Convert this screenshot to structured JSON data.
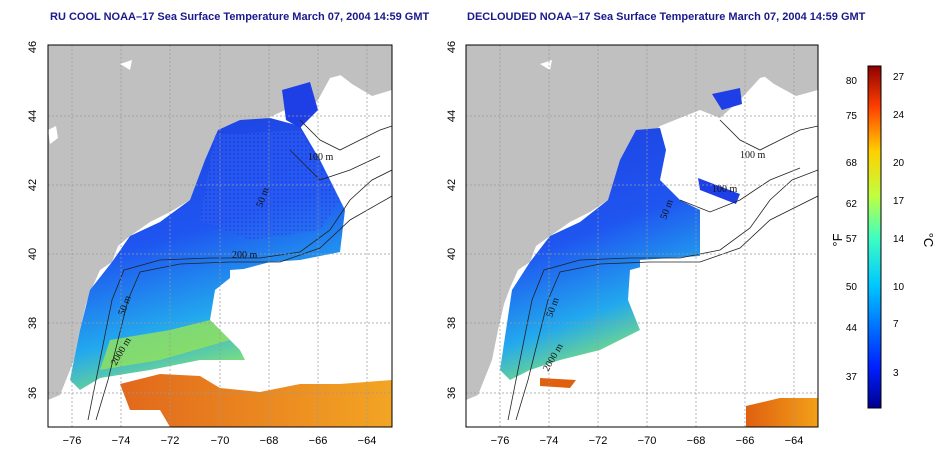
{
  "panels": [
    {
      "title": "RU COOL NOAA–17 Sea Surface Temperature March 07, 2004 14:59 GMT",
      "contour_labels": [
        "100 m",
        "50 m",
        "200 m",
        "50 m",
        "2000 m"
      ]
    },
    {
      "title": "DECLOUDED NOAA–17 Sea Surface Temperature March 07, 2004 14:59 GMT",
      "contour_labels": [
        "100 m",
        "100 m",
        "50 m",
        "50 m",
        "2000 m"
      ]
    }
  ],
  "axes": {
    "lon_ticks": [
      "−76",
      "−74",
      "−72",
      "−70",
      "−68",
      "−66",
      "−64"
    ],
    "lat_ticks": [
      "46",
      "44",
      "42",
      "40",
      "38",
      "36"
    ]
  },
  "colorbar": {
    "fahrenheit_label": "°F",
    "celsius_label": "°C",
    "fahrenheit_ticks": [
      "80",
      "75",
      "68",
      "62",
      "57",
      "50",
      "44",
      "37"
    ],
    "celsius_ticks": [
      "27",
      "24",
      "20",
      "17",
      "14",
      "10",
      "7",
      "3"
    ]
  },
  "colors": {
    "land": "#c0c0c0",
    "cold": "#1a2fd8",
    "warm": "#e88a10",
    "title": "#1a1a8c"
  }
}
